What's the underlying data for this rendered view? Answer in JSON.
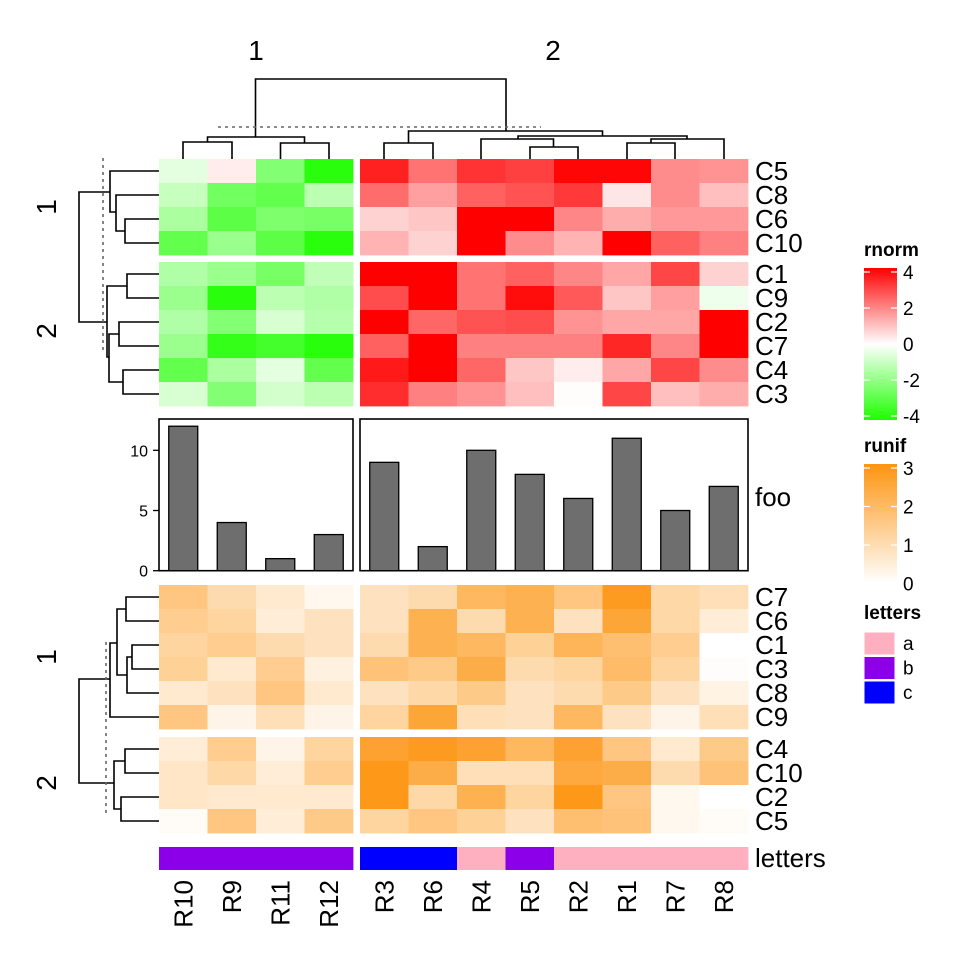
{
  "column_group_titles": [
    "1",
    "2"
  ],
  "top_row_group_titles": [
    "1",
    "2"
  ],
  "bottom_row_group_titles": [
    "1",
    "2"
  ],
  "columns": [
    "R10",
    "R9",
    "R11",
    "R12",
    "R3",
    "R6",
    "R4",
    "R5",
    "R2",
    "R1",
    "R7",
    "R8"
  ],
  "annotation": {
    "name": "letters",
    "values": [
      "b",
      "b",
      "b",
      "b",
      "c",
      "c",
      "a",
      "b",
      "a",
      "a",
      "a",
      "a"
    ],
    "colors": {
      "a": "#FFB0C0",
      "b": "#8B00E8",
      "c": "#0000FF"
    }
  },
  "legends": {
    "rnorm": {
      "title": "rnorm",
      "ticks": [
        "4",
        "2",
        "0",
        "-2",
        "-4"
      ],
      "high": "#FF0000",
      "mid": "#FFFFFF",
      "low": "#1EFF00"
    },
    "runif": {
      "title": "runif",
      "ticks": [
        "3",
        "2",
        "1",
        "0"
      ],
      "high": "#FD9410",
      "low": "#FFFFFF"
    },
    "letters": {
      "title": "letters",
      "items": [
        "a",
        "b",
        "c"
      ]
    }
  },
  "chart_data": [
    {
      "type": "heatmap",
      "name": "rnorm",
      "range": [
        -4,
        4
      ],
      "row_groups": [
        [
          "C5",
          "C8",
          "C6",
          "C10"
        ],
        [
          "C1",
          "C9",
          "C2",
          "C7",
          "C4",
          "C3"
        ]
      ],
      "values": [
        [
          -0.5,
          0.3,
          -2.2,
          -3.8,
          3.5,
          2.2,
          3.2,
          3.0,
          3.9,
          3.9,
          1.8,
          1.7
        ],
        [
          -1.0,
          -2.5,
          -2.8,
          -1.2,
          2.3,
          1.5,
          2.5,
          2.7,
          3.1,
          0.4,
          1.8,
          1.0
        ],
        [
          -1.5,
          -2.9,
          -2.3,
          -2.4,
          0.7,
          0.9,
          4.0,
          4.0,
          1.9,
          1.3,
          1.6,
          1.6
        ],
        [
          -2.8,
          -1.8,
          -2.9,
          -3.8,
          1.2,
          0.7,
          4.0,
          1.8,
          1.2,
          4.0,
          2.5,
          2.0
        ],
        [
          -1.4,
          -1.8,
          -2.4,
          -1.1,
          4.0,
          4.0,
          2.2,
          2.5,
          1.9,
          1.4,
          2.9,
          0.7
        ],
        [
          -1.8,
          -3.8,
          -1.2,
          -1.4,
          2.8,
          4.0,
          2.2,
          3.8,
          2.6,
          0.9,
          1.5,
          -0.3
        ],
        [
          -1.4,
          -2.2,
          -0.7,
          -1.3,
          4.0,
          2.4,
          2.7,
          2.8,
          1.7,
          1.4,
          1.4,
          4.0
        ],
        [
          -1.8,
          -3.6,
          -3.3,
          -3.8,
          2.5,
          4.0,
          2.0,
          2.0,
          2.0,
          3.4,
          1.9,
          4.0
        ],
        [
          -2.8,
          -1.5,
          -0.5,
          -2.8,
          3.6,
          4.0,
          2.4,
          0.9,
          0.3,
          1.4,
          2.9,
          1.8
        ],
        [
          -0.7,
          -2.2,
          -0.8,
          -1.2,
          3.3,
          2.0,
          1.7,
          1.0,
          0.05,
          2.9,
          1.0,
          1.3
        ]
      ]
    },
    {
      "type": "bar",
      "name": "foo",
      "categories": [
        "R10",
        "R9",
        "R11",
        "R12",
        "R3",
        "R6",
        "R4",
        "R5",
        "R2",
        "R1",
        "R7",
        "R8"
      ],
      "values": [
        12,
        4,
        1,
        3,
        9,
        2,
        10,
        8,
        6,
        11,
        5,
        7
      ],
      "ylim": [
        0,
        12.6
      ],
      "yticks": [
        "0",
        "5",
        "10"
      ],
      "ylabel": "foo"
    },
    {
      "type": "heatmap",
      "name": "runif",
      "range": [
        0,
        3
      ],
      "row_groups": [
        [
          "C7",
          "C6",
          "C1",
          "C3",
          "C8",
          "C9"
        ],
        [
          "C4",
          "C10",
          "C2",
          "C5"
        ]
      ],
      "values": [
        [
          1.6,
          1.0,
          0.6,
          0.2,
          0.8,
          1.0,
          2.0,
          2.2,
          1.6,
          2.8,
          1.1,
          0.9
        ],
        [
          1.4,
          1.2,
          0.5,
          0.8,
          0.8,
          2.2,
          1.0,
          2.2,
          0.8,
          2.5,
          1.1,
          0.5
        ],
        [
          1.2,
          1.4,
          1.0,
          0.8,
          1.0,
          2.2,
          2.0,
          1.3,
          2.1,
          1.8,
          1.4,
          0.0
        ],
        [
          1.3,
          0.6,
          1.4,
          0.4,
          1.7,
          1.5,
          2.3,
          1.0,
          1.2,
          1.9,
          1.2,
          0.05
        ],
        [
          0.6,
          0.8,
          1.6,
          0.6,
          0.8,
          1.1,
          1.5,
          0.8,
          1.0,
          1.5,
          0.8,
          0.35
        ],
        [
          1.6,
          0.3,
          0.9,
          0.3,
          1.2,
          2.5,
          0.9,
          0.8,
          2.0,
          0.8,
          0.3,
          0.9
        ],
        [
          0.5,
          1.4,
          0.3,
          1.2,
          2.6,
          2.8,
          2.6,
          2.0,
          2.6,
          1.6,
          0.6,
          1.5
        ],
        [
          0.7,
          1.1,
          0.5,
          1.4,
          2.9,
          2.3,
          0.9,
          0.9,
          2.4,
          2.3,
          1.0,
          1.7
        ],
        [
          0.7,
          0.6,
          0.6,
          0.6,
          2.9,
          1.1,
          2.2,
          1.2,
          2.9,
          1.6,
          0.2,
          0.0
        ],
        [
          0.1,
          1.6,
          0.5,
          1.5,
          1.2,
          1.6,
          1.3,
          0.8,
          1.8,
          1.7,
          0.2,
          0.1
        ]
      ]
    }
  ]
}
